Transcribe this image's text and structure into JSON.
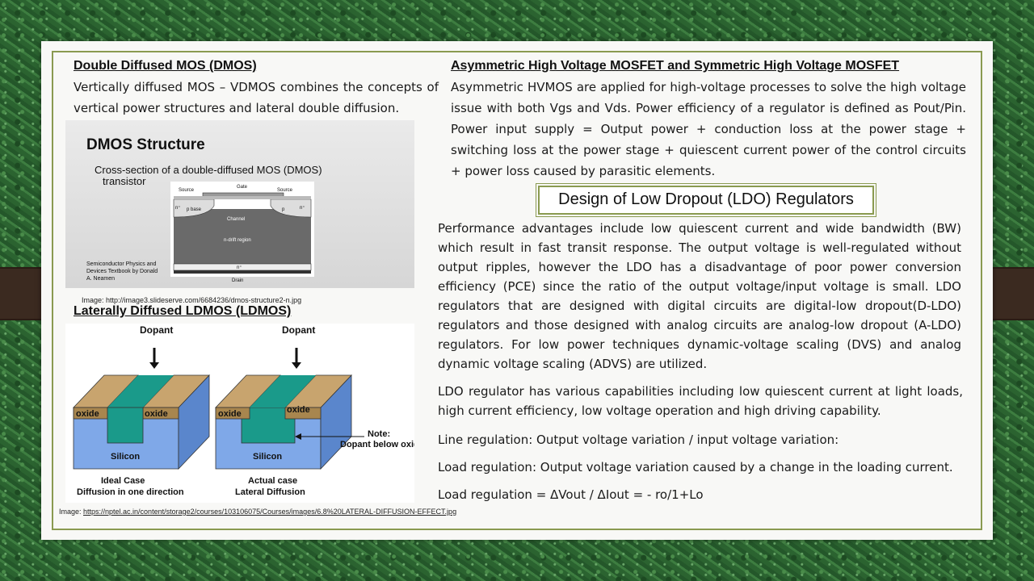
{
  "left": {
    "dmos_heading": "Double Diffused MOS (DMOS)",
    "dmos_text": "Vertically diffused MOS – VDMOS combines the concepts of vertical power structures and lateral double diffusion.",
    "dmos_figure": {
      "title": "DMOS Structure",
      "subtitle_line1": "Cross-section of a double-diffused MOS (DMOS)",
      "subtitle_line2": "transistor",
      "source_label": "Source",
      "gate_label": "Gate",
      "source_label_2": "Source",
      "n_plus": "n⁺",
      "p_base": "p base",
      "p": "p",
      "n_plus_2": "n⁺",
      "channel": "Channel",
      "drift": "n-drift region",
      "n_plus_bottom": "n⁺",
      "drain": "Drain",
      "credit_line1": "Semiconductor Physics and",
      "credit_line2": "Devices Textbook by Donald",
      "credit_line3": "A. Neamen"
    },
    "dmos_caption": "Image: http://image3.slideserve.com/6684236/dmos-structure2-n.jpg",
    "ldmos_heading": "Laterally Diffused LDMOS (LDMOS)",
    "ldmos_figure": {
      "dopant_left": "Dopant",
      "dopant_right": "Dopant",
      "oxide_1": "oxide",
      "oxide_2": "oxide",
      "oxide_3": "oxide",
      "oxide_4": "oxide",
      "silicon_left": "Silicon",
      "silicon_right": "Silicon",
      "note_line1": "Note:",
      "note_line2": "Dopant below oxide",
      "ideal_line1": "Ideal Case",
      "ideal_line2": "Diffusion in one direction",
      "actual_line1": "Actual case",
      "actual_line2": "Lateral Diffusion"
    },
    "ldmos_caption_prefix": "Image: ",
    "ldmos_caption_link": "https://nptel.ac.in/content/storage2/courses/103106075/Courses/images/6.8%20LATERAL-DIFFUSION-EFFECT.jpg"
  },
  "right": {
    "hv_heading": "Asymmetric High Voltage MOSFET and Symmetric High Voltage MOSFET",
    "hv_text": "Asymmetric HVMOS are applied for high-voltage processes to solve the high voltage issue with both Vgs and Vds. Power efficiency of a regulator is defined as Pout/Pin. Power input supply = Output power + conduction loss at the power stage + switching loss at the power stage + quiescent current power of the control circuits + power loss caused by parasitic elements.",
    "ldo_title": "Design of Low Dropout (LDO) Regulators",
    "ldo_p1": "Performance advantages include low quiescent current and wide bandwidth (BW) which result in fast transit response. The output voltage is well-regulated without output ripples, however the LDO has a disadvantage of poor power conversion efficiency (PCE) since the ratio of the output voltage/input voltage is small. LDO regulators that are designed with digital circuits are digital-low dropout(D-LDO) regulators and those designed with analog circuits are analog-low dropout (A-LDO) regulators.  For low power techniques dynamic-voltage scaling (DVS) and analog dynamic voltage scaling (ADVS) are utilized.",
    "ldo_p2": "LDO regulator has various capabilities including low quiescent current at light loads, high current efficiency, low voltage operation and high driving capability.",
    "line_reg": "Line regulation:  Output voltage variation / input voltage variation:",
    "load_reg": "Load regulation:  Output voltage variation caused by a change in the loading current.",
    "load_formula": "Load regulation = ΔVout / ΔIout = - ro/1+Lo"
  },
  "colors": {
    "frame": "#8a9a50",
    "strap": "#3b2a20",
    "oxide": "#c8a46e",
    "silicon": "#7fa8e8",
    "doped": "#1a9a8a"
  }
}
